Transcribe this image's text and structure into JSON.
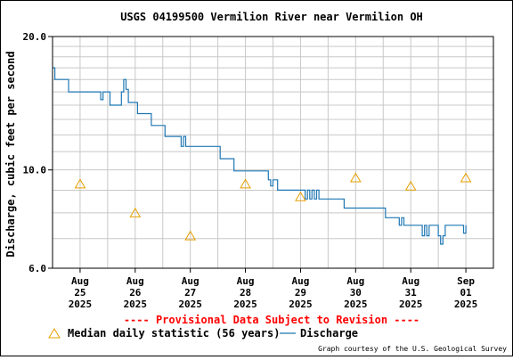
{
  "chart_data": {
    "type": "line",
    "title": "USGS 04199500 Vermilion River near Vermilion OH",
    "ylabel": "Discharge, cubic feet per second",
    "xlabel": "",
    "y_scale": "log",
    "ylim": [
      6.0,
      20.0
    ],
    "xlim": [
      "2025-08-24 12:00",
      "2025-09-01 12:00"
    ],
    "y_ticks": [
      "6.0",
      "10.0",
      "20.0"
    ],
    "x_ticks": [
      {
        "month": "Aug",
        "day": "25",
        "year": "2025"
      },
      {
        "month": "Aug",
        "day": "26",
        "year": "2025"
      },
      {
        "month": "Aug",
        "day": "27",
        "year": "2025"
      },
      {
        "month": "Aug",
        "day": "28",
        "year": "2025"
      },
      {
        "month": "Aug",
        "day": "29",
        "year": "2025"
      },
      {
        "month": "Aug",
        "day": "30",
        "year": "2025"
      },
      {
        "month": "Aug",
        "day": "31",
        "year": "2025"
      },
      {
        "month": "Sep",
        "day": "01",
        "year": "2025"
      }
    ],
    "grid": true,
    "series": [
      {
        "name": "Discharge",
        "color": "#1f77b4",
        "style": "step-line",
        "points": [
          [
            "2025-08-24 12:00",
            17.0
          ],
          [
            "2025-08-24 13:00",
            16.0
          ],
          [
            "2025-08-24 18:00",
            16.0
          ],
          [
            "2025-08-24 19:00",
            15.0
          ],
          [
            "2025-08-25 08:00",
            15.0
          ],
          [
            "2025-08-25 09:00",
            14.4
          ],
          [
            "2025-08-25 10:00",
            15.0
          ],
          [
            "2025-08-25 12:00",
            15.0
          ],
          [
            "2025-08-25 13:00",
            14.0
          ],
          [
            "2025-08-25 15:00",
            14.0
          ],
          [
            "2025-08-25 17:00",
            14.0
          ],
          [
            "2025-08-25 18:00",
            15.0
          ],
          [
            "2025-08-25 19:00",
            16.0
          ],
          [
            "2025-08-25 20:00",
            15.2
          ],
          [
            "2025-08-25 21:00",
            14.2
          ],
          [
            "2025-08-26 00:00",
            14.2
          ],
          [
            "2025-08-26 01:00",
            13.4
          ],
          [
            "2025-08-26 06:00",
            13.4
          ],
          [
            "2025-08-26 07:00",
            12.6
          ],
          [
            "2025-08-26 12:00",
            12.6
          ],
          [
            "2025-08-26 13:00",
            11.9
          ],
          [
            "2025-08-26 19:00",
            11.9
          ],
          [
            "2025-08-26 20:00",
            11.3
          ],
          [
            "2025-08-26 21:00",
            11.9
          ],
          [
            "2025-08-26 22:00",
            11.3
          ],
          [
            "2025-08-27 12:00",
            11.3
          ],
          [
            "2025-08-27 13:00",
            10.6
          ],
          [
            "2025-08-27 18:00",
            10.6
          ],
          [
            "2025-08-27 19:00",
            9.95
          ],
          [
            "2025-08-28 09:00",
            9.95
          ],
          [
            "2025-08-28 10:00",
            9.5
          ],
          [
            "2025-08-28 11:00",
            9.2
          ],
          [
            "2025-08-28 12:00",
            9.5
          ],
          [
            "2025-08-28 13:00",
            9.5
          ],
          [
            "2025-08-28 14:00",
            9.0
          ],
          [
            "2025-08-29 00:00",
            9.0
          ],
          [
            "2025-08-29 01:00",
            9.0
          ],
          [
            "2025-08-29 02:00",
            8.6
          ],
          [
            "2025-08-29 03:00",
            9.0
          ],
          [
            "2025-08-29 04:00",
            8.6
          ],
          [
            "2025-08-29 05:00",
            9.0
          ],
          [
            "2025-08-29 06:00",
            8.6
          ],
          [
            "2025-08-29 07:00",
            9.0
          ],
          [
            "2025-08-29 08:00",
            8.6
          ],
          [
            "2025-08-29 18:00",
            8.6
          ],
          [
            "2025-08-29 19:00",
            8.2
          ],
          [
            "2025-08-30 12:00",
            8.2
          ],
          [
            "2025-08-30 13:00",
            7.8
          ],
          [
            "2025-08-30 18:00",
            7.8
          ],
          [
            "2025-08-30 19:00",
            7.5
          ],
          [
            "2025-08-30 20:00",
            7.8
          ],
          [
            "2025-08-30 21:00",
            7.5
          ],
          [
            "2025-08-31 04:00",
            7.5
          ],
          [
            "2025-08-31 05:00",
            7.1
          ],
          [
            "2025-08-31 06:00",
            7.5
          ],
          [
            "2025-08-31 07:00",
            7.1
          ],
          [
            "2025-08-31 08:00",
            7.5
          ],
          [
            "2025-08-31 11:00",
            7.5
          ],
          [
            "2025-08-31 12:00",
            7.1
          ],
          [
            "2025-08-31 13:00",
            6.8
          ],
          [
            "2025-08-31 14:00",
            7.1
          ],
          [
            "2025-08-31 15:00",
            7.5
          ],
          [
            "2025-08-31 22:00",
            7.5
          ],
          [
            "2025-08-31 23:00",
            7.2
          ],
          [
            "2025-09-01 00:00",
            7.5
          ]
        ]
      },
      {
        "name": "Median daily statistic (56 years)",
        "color": "#e69f00",
        "style": "triangle-markers",
        "points": [
          [
            "2025-08-25 00:00",
            9.3
          ],
          [
            "2025-08-26 00:00",
            8.0
          ],
          [
            "2025-08-27 00:00",
            7.1
          ],
          [
            "2025-08-28 00:00",
            9.3
          ],
          [
            "2025-08-29 00:00",
            8.7
          ],
          [
            "2025-08-30 00:00",
            9.6
          ],
          [
            "2025-08-31 00:00",
            9.2
          ],
          [
            "2025-09-01 00:00",
            9.6
          ]
        ]
      }
    ],
    "legend": {
      "placement": "bottom-left"
    },
    "annotations": [
      "---- Provisional Data Subject to Revision ----",
      "Graph courtesy of the U.S. Geological Survey"
    ]
  }
}
